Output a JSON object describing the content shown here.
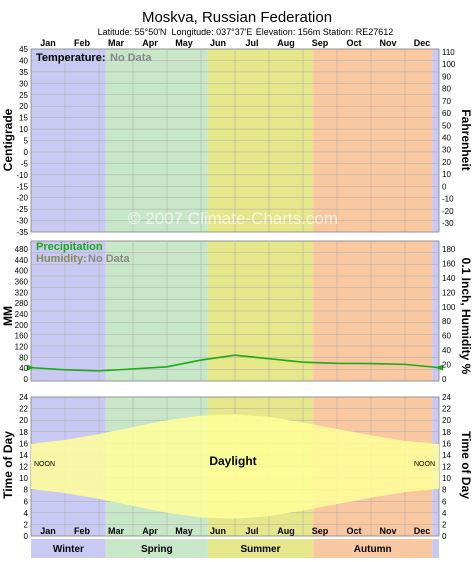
{
  "header": {
    "title": "Moskva,  Russian Federation",
    "latitude": "Latitude: 55°50'N",
    "longitude": "Longitude: 037°37'E",
    "elevation": "Elevation: 156m",
    "station": "Station: RE27612"
  },
  "watermark": "© 2007 Climate-Charts.com",
  "colors": {
    "winter": "#c9c9f3",
    "spring": "#c8e6c8",
    "summer": "#e6e68a",
    "autumn": "#fac8a0",
    "precip_line": "#1aaa1a",
    "daylight_fill": "#ffff99",
    "temp_label": "#000000",
    "no_data": "#888888",
    "precip_label": "#1aaa1a"
  },
  "months_top": [
    "Jan",
    "Feb",
    "Mar",
    "Apr",
    "May",
    "Jun",
    "Jul",
    "Aug",
    "Sep",
    "Oct",
    "Nov",
    "Dec"
  ],
  "months_bottom": [
    "Jan",
    "Feb",
    "Mar",
    "Apr",
    "May",
    "Jun",
    "Jul",
    "Aug",
    "Sep",
    "Oct",
    "Nov",
    "Dec"
  ],
  "seasons": [
    "Winter",
    "Spring",
    "Summer",
    "Autumn"
  ],
  "chart_data": [
    {
      "type": "line",
      "panel": "temperature",
      "label": "Temperature:",
      "status": "No Data",
      "ylabel": "Centigrade",
      "ylabel_right": "Fahrenheit",
      "yticks_left": [
        "45",
        "40",
        "35",
        "30",
        "25",
        "20",
        "15",
        "10",
        "5",
        "0",
        "-5",
        "-10",
        "-15",
        "-20",
        "-25",
        "-30",
        "-35"
      ],
      "yticks_right": [
        "110",
        "100",
        "90",
        "80",
        "70",
        "60",
        "50",
        "40",
        "30",
        "20",
        "10",
        "0",
        "-10",
        "-20",
        "-30"
      ],
      "ylim": [
        -35,
        45
      ],
      "grid": true
    },
    {
      "type": "line",
      "panel": "precipitation",
      "series": [
        {
          "name": "Precipitation",
          "x": [
            0.0,
            1.0,
            2.0,
            3.0,
            4.0,
            5.0,
            6.0,
            7.0,
            8.0,
            9.0,
            10.0,
            11.0,
            12.0
          ],
          "values": [
            42,
            34,
            30,
            37,
            45,
            70,
            88,
            75,
            62,
            58,
            57,
            54,
            42
          ]
        }
      ],
      "label_humidity": "Humidity:",
      "humidity_status": "No Data",
      "ylabel": "MM",
      "ylabel_right": "0.1 Inch, Humidity %",
      "yticks_left": [
        "480",
        "440",
        "400",
        "360",
        "320",
        "280",
        "240",
        "200",
        "160",
        "120",
        "80",
        "40",
        "0"
      ],
      "yticks_right": [
        "180",
        "160",
        "140",
        "120",
        "100",
        "80",
        "60",
        "40",
        "20",
        "0"
      ],
      "ylim": [
        0,
        500
      ],
      "grid": true
    },
    {
      "type": "area",
      "panel": "daylight",
      "series": [
        {
          "name": "Daylight",
          "x": [
            0.0,
            1.0,
            2.0,
            3.0,
            4.0,
            5.0,
            6.0,
            7.0,
            8.0,
            9.0,
            10.0,
            11.0,
            12.0
          ],
          "sunrise": [
            8.1,
            7.4,
            6.4,
            5.2,
            4.0,
            3.2,
            3.0,
            3.4,
            4.4,
            5.5,
            6.6,
            7.6,
            8.1
          ],
          "sunset": [
            15.9,
            16.6,
            17.6,
            18.8,
            20.0,
            20.8,
            21.0,
            20.6,
            19.6,
            18.5,
            17.4,
            16.4,
            15.9
          ]
        }
      ],
      "noon_label": "NOON",
      "ylabel": "Time of Day",
      "ylabel_right": "Time of Day",
      "yticks_left": [
        "24",
        "22",
        "20",
        "18",
        "16",
        "14",
        "12",
        "10",
        "8",
        "6",
        "4",
        "2",
        "0"
      ],
      "yticks_right": [
        "24",
        "22",
        "20",
        "18",
        "16",
        "14",
        "12",
        "10",
        "8",
        "6",
        "4",
        "2",
        "0"
      ],
      "ylim": [
        0,
        24
      ],
      "grid": true
    }
  ]
}
